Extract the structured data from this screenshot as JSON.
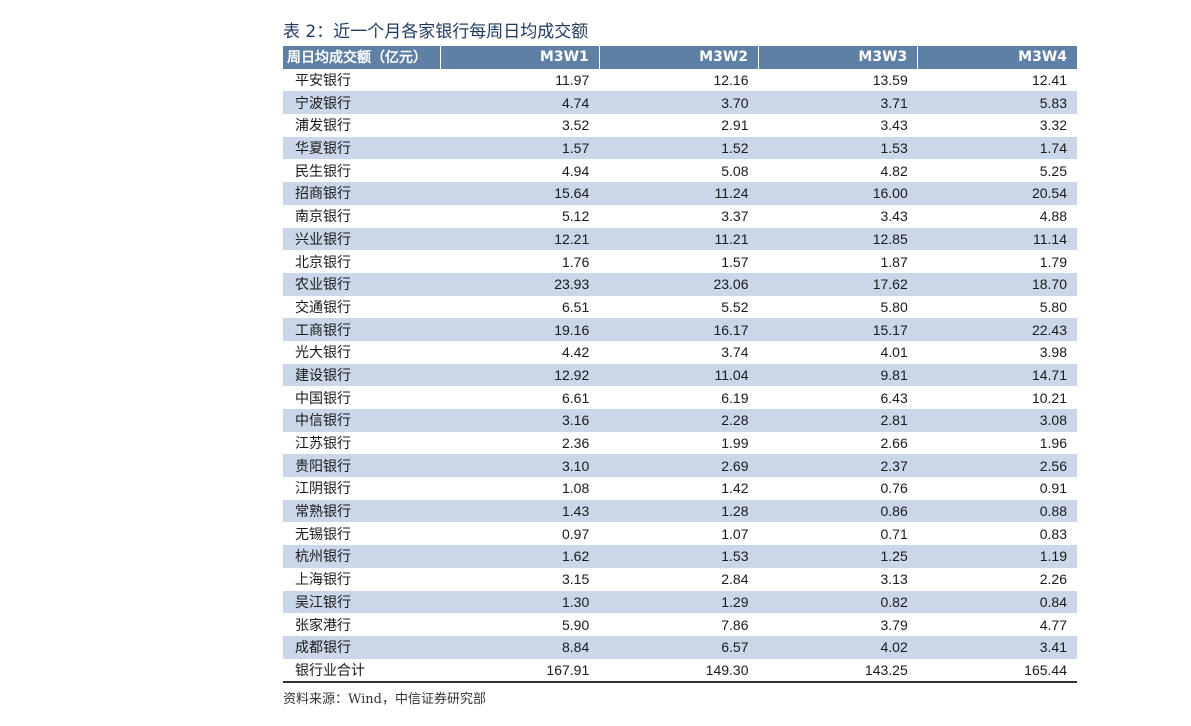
{
  "title": "表 2：近一个月各家银行每周日均成交额",
  "table": {
    "header": [
      "周日均成交额（亿元）",
      "M3W1",
      "M3W2",
      "M3W3",
      "M3W4"
    ],
    "rows": [
      [
        "平安银行",
        "11.97",
        "12.16",
        "13.59",
        "12.41"
      ],
      [
        "宁波银行",
        "4.74",
        "3.70",
        "3.71",
        "5.83"
      ],
      [
        "浦发银行",
        "3.52",
        "2.91",
        "3.43",
        "3.32"
      ],
      [
        "华夏银行",
        "1.57",
        "1.52",
        "1.53",
        "1.74"
      ],
      [
        "民生银行",
        "4.94",
        "5.08",
        "4.82",
        "5.25"
      ],
      [
        "招商银行",
        "15.64",
        "11.24",
        "16.00",
        "20.54"
      ],
      [
        "南京银行",
        "5.12",
        "3.37",
        "3.43",
        "4.88"
      ],
      [
        "兴业银行",
        "12.21",
        "11.21",
        "12.85",
        "11.14"
      ],
      [
        "北京银行",
        "1.76",
        "1.57",
        "1.87",
        "1.79"
      ],
      [
        "农业银行",
        "23.93",
        "23.06",
        "17.62",
        "18.70"
      ],
      [
        "交通银行",
        "6.51",
        "5.52",
        "5.80",
        "5.80"
      ],
      [
        "工商银行",
        "19.16",
        "16.17",
        "15.17",
        "22.43"
      ],
      [
        "光大银行",
        "4.42",
        "3.74",
        "4.01",
        "3.98"
      ],
      [
        "建设银行",
        "12.92",
        "11.04",
        "9.81",
        "14.71"
      ],
      [
        "中国银行",
        "6.61",
        "6.19",
        "6.43",
        "10.21"
      ],
      [
        "中信银行",
        "3.16",
        "2.28",
        "2.81",
        "3.08"
      ],
      [
        "江苏银行",
        "2.36",
        "1.99",
        "2.66",
        "1.96"
      ],
      [
        "贵阳银行",
        "3.10",
        "2.69",
        "2.37",
        "2.56"
      ],
      [
        "江阴银行",
        "1.08",
        "1.42",
        "0.76",
        "0.91"
      ],
      [
        "常熟银行",
        "1.43",
        "1.28",
        "0.86",
        "0.88"
      ],
      [
        "无锡银行",
        "0.97",
        "1.07",
        "0.71",
        "0.83"
      ],
      [
        "杭州银行",
        "1.62",
        "1.53",
        "1.25",
        "1.19"
      ],
      [
        "上海银行",
        "3.15",
        "2.84",
        "3.13",
        "2.26"
      ],
      [
        "吴江银行",
        "1.30",
        "1.29",
        "0.82",
        "0.84"
      ],
      [
        "张家港行",
        "5.90",
        "7.86",
        "3.79",
        "4.77"
      ],
      [
        "成都银行",
        "8.84",
        "6.57",
        "4.02",
        "3.41"
      ],
      [
        "银行业合计",
        "167.91",
        "149.30",
        "143.25",
        "165.44"
      ]
    ]
  },
  "source": "资料来源：Wind，中信证券研究部"
}
